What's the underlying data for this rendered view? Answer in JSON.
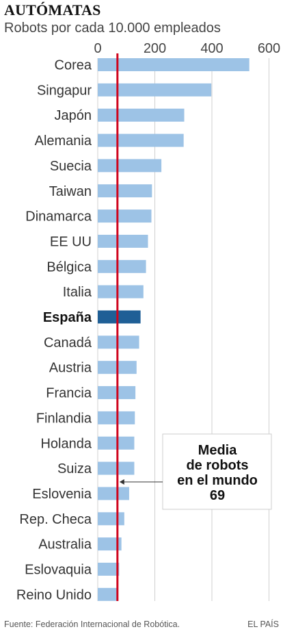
{
  "header": {
    "title": "AUTÓMATAS",
    "subtitle": "Robots por cada 10.000 empleados"
  },
  "chart_data": {
    "type": "bar",
    "orientation": "horizontal",
    "categories": [
      "Corea",
      "Singapur",
      "Japón",
      "Alemania",
      "Suecia",
      "Taiwan",
      "Dinamarca",
      "EE UU",
      "Bélgica",
      "Italia",
      "España",
      "Canadá",
      "Austria",
      "Francia",
      "Finlandia",
      "Holanda",
      "Suiza",
      "Eslovenia",
      "Rep. Checa",
      "Australia",
      "Eslovaquia",
      "Reino Unido"
    ],
    "values": [
      531,
      398,
      303,
      301,
      223,
      190,
      188,
      176,
      169,
      160,
      150,
      145,
      136,
      132,
      130,
      128,
      128,
      110,
      93,
      83,
      75,
      71
    ],
    "highlight": "España",
    "xlim": [
      0,
      620
    ],
    "xticks": [
      0,
      200,
      400,
      600
    ],
    "grid": true,
    "reference_line": {
      "value": 69,
      "label_lines": [
        "Media",
        "de robots",
        "en el mundo",
        "69"
      ]
    },
    "colors": {
      "bar": "#9dc3e6",
      "highlight": "#1f5f96",
      "reference": "#d0021b",
      "grid": "#cfcfcf"
    }
  },
  "footer": {
    "source": "Fuente: Federación Internacional de Robótica.",
    "brand": "EL PAÍS"
  }
}
